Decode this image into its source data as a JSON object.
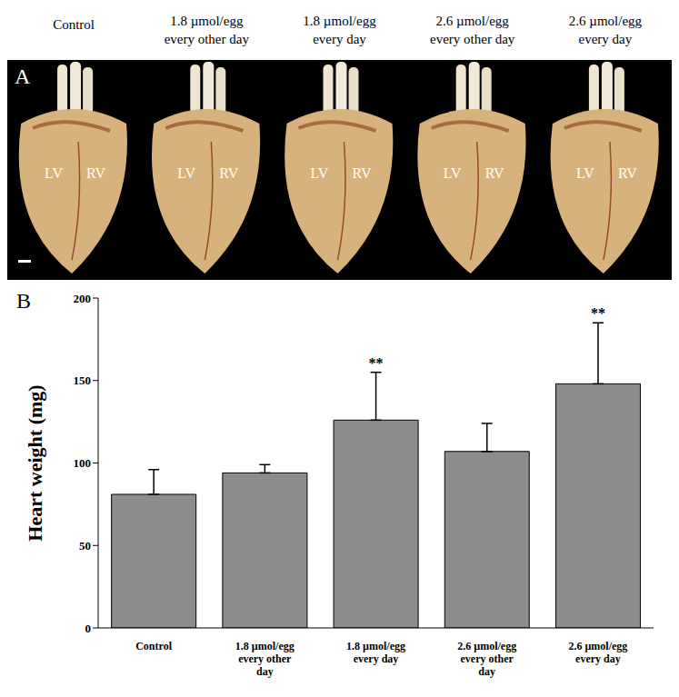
{
  "panel_a": {
    "label": "A",
    "columns": [
      "Control",
      "1.8 µmol/egg every other day",
      "1.8 µmol/egg every day",
      "2.6 µmol/egg every other day",
      "2.6 µmol/egg every day"
    ],
    "ventricle_labels": [
      "LV",
      "RV"
    ]
  },
  "chart_data": {
    "type": "bar",
    "panel_label": "B",
    "y_label": "Heart weight (mg)",
    "categories": [
      "Control",
      "1.8 µmol/egg every other day",
      "1.8 µmol/egg every day",
      "2.6 µmol/egg every other day",
      "2.6 µmol/egg every day"
    ],
    "values": [
      81,
      94,
      126,
      107,
      148
    ],
    "errors": [
      15,
      5,
      29,
      17,
      37
    ],
    "significance": [
      null,
      null,
      "**",
      null,
      "**"
    ],
    "color": "#8c8c8c",
    "ylim": [
      0,
      200
    ],
    "yticks": [
      0,
      50,
      100,
      150,
      200
    ],
    "grid": false
  }
}
